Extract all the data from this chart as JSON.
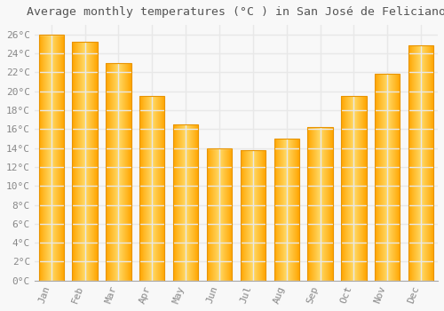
{
  "title": "Average monthly temperatures (°C ) in San José de Feliciano",
  "months": [
    "Jan",
    "Feb",
    "Mar",
    "Apr",
    "May",
    "Jun",
    "Jul",
    "Aug",
    "Sep",
    "Oct",
    "Nov",
    "Dec"
  ],
  "values": [
    26.0,
    25.2,
    23.0,
    19.5,
    16.5,
    14.0,
    13.8,
    15.0,
    16.2,
    19.5,
    21.8,
    24.8
  ],
  "bar_color_light": "#FFD966",
  "bar_color_main": "#FFA500",
  "bar_color_edge": "#E89400",
  "background_color": "#f8f8f8",
  "grid_color": "#e8e8e8",
  "text_color": "#888888",
  "title_color": "#555555",
  "ylim": [
    0,
    27
  ],
  "title_fontsize": 9.5,
  "tick_fontsize": 8
}
